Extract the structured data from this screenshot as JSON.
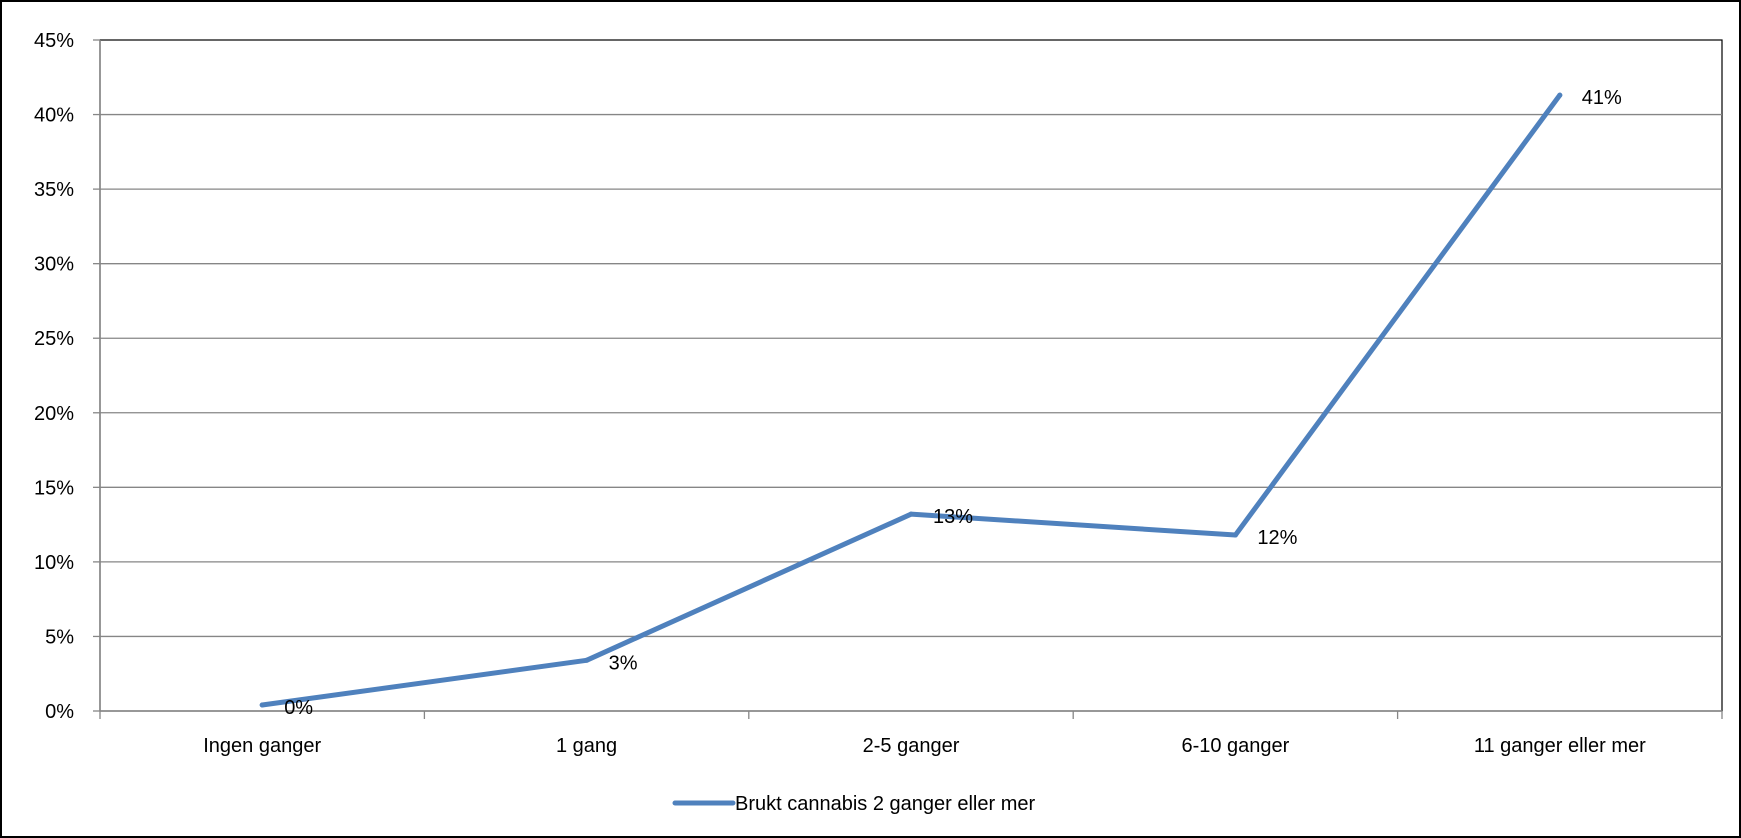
{
  "chart_data": {
    "type": "line",
    "title": "",
    "xlabel": "",
    "ylabel": "",
    "categories": [
      "Ingen ganger",
      "1 gang",
      "2-5 ganger",
      "6-10 ganger",
      "11 ganger eller mer"
    ],
    "y_ticks": [
      "0%",
      "5%",
      "10%",
      "15%",
      "20%",
      "25%",
      "30%",
      "35%",
      "40%",
      "45%"
    ],
    "ylim": [
      0,
      45
    ],
    "grid": true,
    "legend_position": "bottom",
    "series": [
      {
        "name": "Brukt cannabis 2 ganger eller mer",
        "values": [
          0.4,
          3.4,
          13.2,
          11.8,
          41.3
        ],
        "labels": [
          "0%",
          "3%",
          "13%",
          "12%",
          "41%"
        ],
        "color": "#4f81bd"
      }
    ]
  }
}
